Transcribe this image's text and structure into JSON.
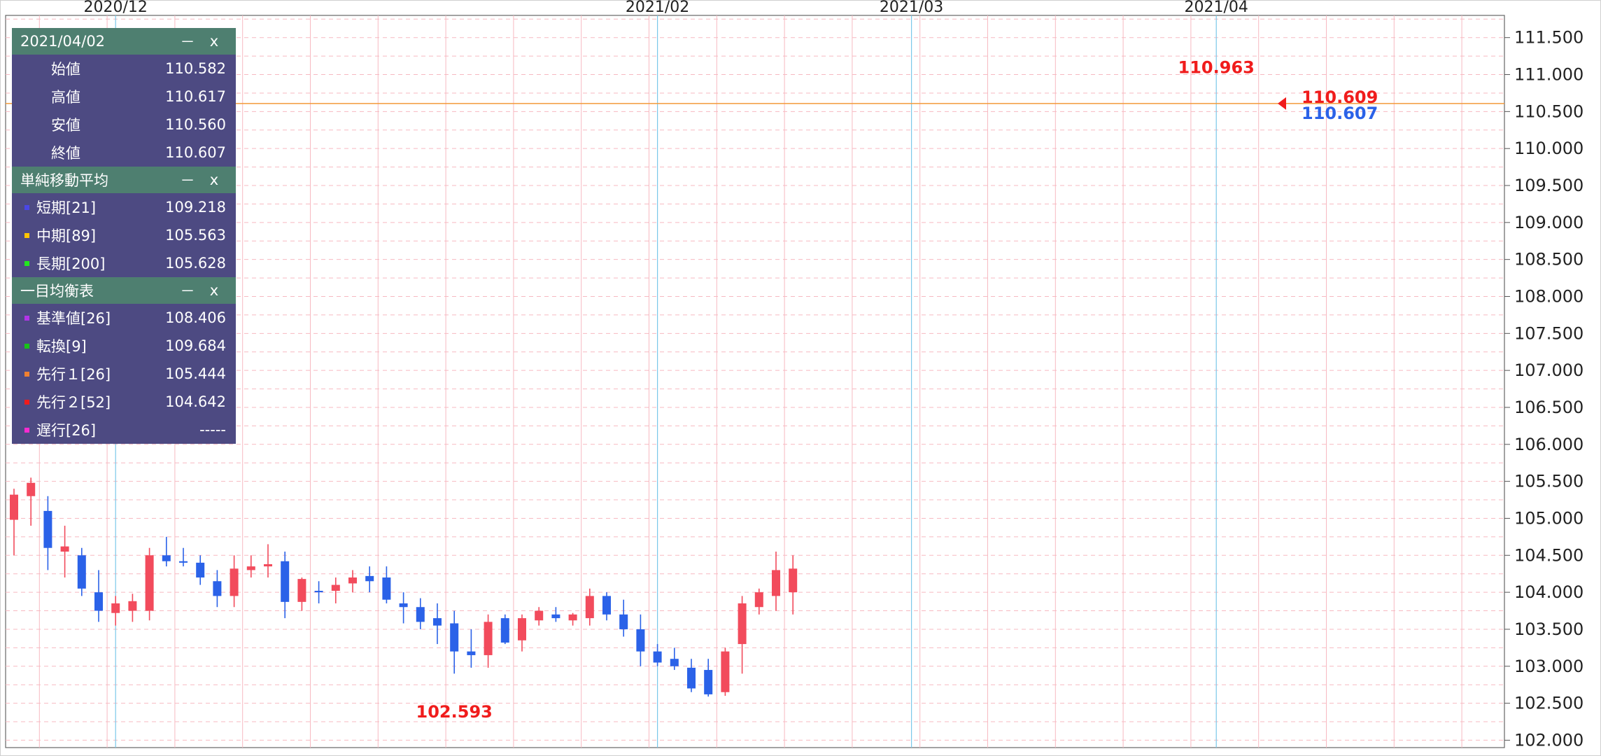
{
  "colors": {
    "up": "#f24b5c",
    "down": "#2b62e8",
    "sma_short": "#4a47e6",
    "sma_mid": "#ffc400",
    "sma_long": "#21e61f",
    "kijun": "#b234e8",
    "tenkan": "#19c219",
    "senkou1": "#f08030",
    "senkou2": "#f01c1c",
    "chikou": "#f72bd0",
    "kumo_up": "#f9c4a4",
    "kumo_down": "#ececec",
    "hline": "#f39a3a",
    "grid": "#f7b9c1",
    "month_line": "#79c8ea",
    "legend_head": "#4e7f70",
    "legend_row": "#4d4a82"
  },
  "legend": {
    "date": "2021/04/02",
    "minimize": "－",
    "close": "x",
    "ohlc": [
      {
        "label": "始値",
        "value": "110.582"
      },
      {
        "label": "高値",
        "value": "110.617"
      },
      {
        "label": "安値",
        "value": "110.560"
      },
      {
        "label": "終値",
        "value": "110.607"
      }
    ],
    "sma_title": "単純移動平均",
    "sma": [
      {
        "label": "短期[21]",
        "value": "109.218",
        "color": "#4a47e6"
      },
      {
        "label": "中期[89]",
        "value": "105.563",
        "color": "#ffc400"
      },
      {
        "label": "長期[200]",
        "value": "105.628",
        "color": "#21e61f"
      }
    ],
    "ichimoku_title": "一目均衡表",
    "ichimoku": [
      {
        "label": "基準値[26]",
        "value": "108.406",
        "color": "#b234e8"
      },
      {
        "label": "転換[9]",
        "value": "109.684",
        "color": "#19c219"
      },
      {
        "label": "先行１[26]",
        "value": "105.444",
        "color": "#f08030"
      },
      {
        "label": "先行２[52]",
        "value": "104.642",
        "color": "#f01c1c"
      },
      {
        "label": "遅行[26]",
        "value": "-----",
        "color": "#f72bd0"
      }
    ]
  },
  "chart_data": {
    "type": "candlestick",
    "x_month_labels": [
      {
        "label": "2020/12",
        "index": 6
      },
      {
        "label": "2021/02",
        "index": 38
      },
      {
        "label": "2021/03",
        "index": 53
      },
      {
        "label": "2021/04",
        "index": 71
      }
    ],
    "ylim": [
      101.9,
      111.8
    ],
    "y_ticks": [
      "102.000",
      "102.500",
      "103.000",
      "103.500",
      "104.000",
      "104.500",
      "105.000",
      "105.500",
      "106.000",
      "106.500",
      "107.000",
      "107.500",
      "108.000",
      "108.500",
      "109.000",
      "109.500",
      "110.000",
      "110.500",
      "111.000",
      "111.500"
    ],
    "hline": 110.609,
    "annotations": [
      {
        "text": "110.963",
        "index": 71,
        "price": 110.963,
        "color": "#f01c1c",
        "position": "above"
      },
      {
        "text": "102.593",
        "index": 26,
        "price": 102.593,
        "color": "#f01c1c",
        "position": "below"
      }
    ],
    "price_labels": [
      {
        "text": "110.609",
        "price": 110.609,
        "color": "#f01c1c"
      },
      {
        "text": "110.607",
        "price": 110.607,
        "color": "#2b62e8"
      }
    ],
    "candles": [
      {
        "o": 104.98,
        "h": 105.4,
        "l": 104.5,
        "c": 105.32
      },
      {
        "o": 105.3,
        "h": 105.55,
        "l": 104.9,
        "c": 105.48
      },
      {
        "o": 105.1,
        "h": 105.3,
        "l": 104.3,
        "c": 104.6
      },
      {
        "o": 104.55,
        "h": 104.9,
        "l": 104.2,
        "c": 104.62
      },
      {
        "o": 104.5,
        "h": 104.6,
        "l": 103.95,
        "c": 104.05
      },
      {
        "o": 104.0,
        "h": 104.3,
        "l": 103.6,
        "c": 103.75
      },
      {
        "o": 103.72,
        "h": 103.95,
        "l": 103.55,
        "c": 103.85
      },
      {
        "o": 103.75,
        "h": 103.98,
        "l": 103.6,
        "c": 103.88
      },
      {
        "o": 103.75,
        "h": 104.6,
        "l": 103.62,
        "c": 104.5
      },
      {
        "o": 104.5,
        "h": 104.75,
        "l": 104.35,
        "c": 104.42
      },
      {
        "o": 104.42,
        "h": 104.6,
        "l": 104.35,
        "c": 104.4
      },
      {
        "o": 104.4,
        "h": 104.5,
        "l": 104.1,
        "c": 104.2
      },
      {
        "o": 104.15,
        "h": 104.3,
        "l": 103.8,
        "c": 103.95
      },
      {
        "o": 103.95,
        "h": 104.5,
        "l": 103.8,
        "c": 104.32
      },
      {
        "o": 104.3,
        "h": 104.5,
        "l": 104.2,
        "c": 104.35
      },
      {
        "o": 104.35,
        "h": 104.65,
        "l": 104.2,
        "c": 104.38
      },
      {
        "o": 104.42,
        "h": 104.55,
        "l": 103.65,
        "c": 103.87
      },
      {
        "o": 103.87,
        "h": 104.2,
        "l": 103.75,
        "c": 104.18
      },
      {
        "o": 104.02,
        "h": 104.15,
        "l": 103.85,
        "c": 104.0
      },
      {
        "o": 104.02,
        "h": 104.2,
        "l": 103.85,
        "c": 104.1
      },
      {
        "o": 104.12,
        "h": 104.3,
        "l": 104.0,
        "c": 104.2
      },
      {
        "o": 104.22,
        "h": 104.35,
        "l": 104.0,
        "c": 104.15
      },
      {
        "o": 104.2,
        "h": 104.35,
        "l": 103.85,
        "c": 103.9
      },
      {
        "o": 103.85,
        "h": 104.0,
        "l": 103.58,
        "c": 103.8
      },
      {
        "o": 103.8,
        "h": 103.92,
        "l": 103.5,
        "c": 103.6
      },
      {
        "o": 103.65,
        "h": 103.85,
        "l": 103.3,
        "c": 103.55
      },
      {
        "o": 103.58,
        "h": 103.75,
        "l": 102.9,
        "c": 103.2
      },
      {
        "o": 103.2,
        "h": 103.5,
        "l": 102.98,
        "c": 103.15
      },
      {
        "o": 103.15,
        "h": 103.7,
        "l": 102.98,
        "c": 103.6
      },
      {
        "o": 103.65,
        "h": 103.7,
        "l": 103.3,
        "c": 103.32
      },
      {
        "o": 103.35,
        "h": 103.7,
        "l": 103.2,
        "c": 103.65
      },
      {
        "o": 103.62,
        "h": 103.8,
        "l": 103.55,
        "c": 103.75
      },
      {
        "o": 103.7,
        "h": 103.8,
        "l": 103.6,
        "c": 103.65
      },
      {
        "o": 103.62,
        "h": 103.72,
        "l": 103.55,
        "c": 103.7
      },
      {
        "o": 103.65,
        "h": 104.05,
        "l": 103.55,
        "c": 103.95
      },
      {
        "o": 103.95,
        "h": 104.0,
        "l": 103.62,
        "c": 103.7
      },
      {
        "o": 103.7,
        "h": 103.9,
        "l": 103.4,
        "c": 103.5
      },
      {
        "o": 103.5,
        "h": 103.7,
        "l": 103.0,
        "c": 103.2
      },
      {
        "o": 103.2,
        "h": 103.3,
        "l": 103.0,
        "c": 103.05
      },
      {
        "o": 103.1,
        "h": 103.25,
        "l": 102.95,
        "c": 103.0
      },
      {
        "o": 102.98,
        "h": 103.1,
        "l": 102.65,
        "c": 102.7
      },
      {
        "o": 102.95,
        "h": 103.1,
        "l": 102.59,
        "c": 102.62
      },
      {
        "o": 102.65,
        "h": 103.25,
        "l": 102.6,
        "c": 103.2
      },
      {
        "o": 103.3,
        "h": 103.95,
        "l": 102.9,
        "c": 103.85
      },
      {
        "o": 103.8,
        "h": 104.05,
        "l": 103.7,
        "c": 104.0
      },
      {
        "o": 103.95,
        "h": 104.55,
        "l": 103.75,
        "c": 104.3
      },
      {
        "o": 104.0,
        "h": 104.5,
        "l": 103.7,
        "c": 104.32
      }
    ]
  }
}
